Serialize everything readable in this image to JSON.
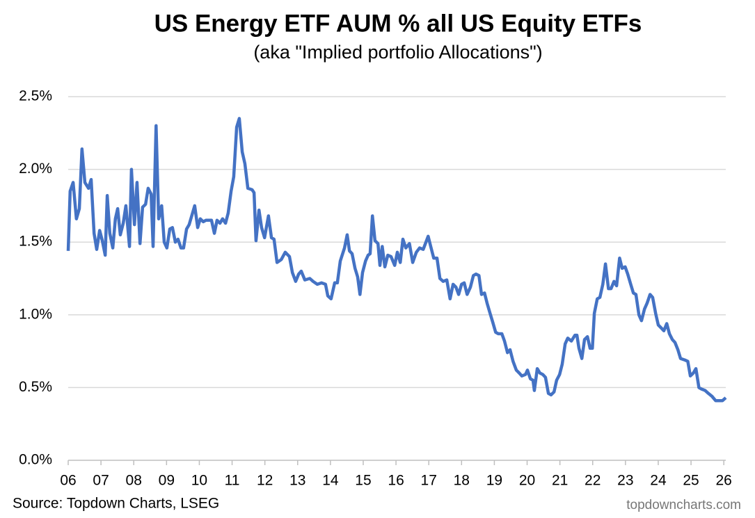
{
  "chart_data": {
    "type": "line",
    "title": "US Energy ETF AUM % all US Equity ETFs",
    "subtitle": "(aka \"Implied portfolio Allocations\")",
    "source": "Source: Topdown Charts, LSEG",
    "watermark": "topdowncharts.com",
    "color": "#4472c4",
    "grid": true,
    "xlim": [
      2006,
      2026.06
    ],
    "xticks": [
      {
        "value": 2006,
        "label": "06"
      },
      {
        "value": 2007,
        "label": "07"
      },
      {
        "value": 2008,
        "label": "08"
      },
      {
        "value": 2009,
        "label": "09"
      },
      {
        "value": 2010,
        "label": "10"
      },
      {
        "value": 2011,
        "label": "11"
      },
      {
        "value": 2012,
        "label": "12"
      },
      {
        "value": 2013,
        "label": "13"
      },
      {
        "value": 2014,
        "label": "14"
      },
      {
        "value": 2015,
        "label": "15"
      },
      {
        "value": 2016,
        "label": "16"
      },
      {
        "value": 2017,
        "label": "17"
      },
      {
        "value": 2018,
        "label": "18"
      },
      {
        "value": 2019,
        "label": "19"
      },
      {
        "value": 2020,
        "label": "20"
      },
      {
        "value": 2021,
        "label": "21"
      },
      {
        "value": 2022,
        "label": "22"
      },
      {
        "value": 2023,
        "label": "23"
      },
      {
        "value": 2024,
        "label": "24"
      },
      {
        "value": 2025,
        "label": "25"
      },
      {
        "value": 2026,
        "label": "26"
      }
    ],
    "ylim": [
      0,
      2.5
    ],
    "yticks": [
      {
        "value": 0,
        "label": "0.0%"
      },
      {
        "value": 0.5,
        "label": "0.5%"
      },
      {
        "value": 1,
        "label": "1.0%"
      },
      {
        "value": 1.5,
        "label": "1.5%"
      },
      {
        "value": 2,
        "label": "2.0%"
      },
      {
        "value": 2.5,
        "label": "2.5%"
      }
    ],
    "x": [
      2006.0,
      2006.06,
      2006.15,
      2006.25,
      2006.34,
      2006.42,
      2006.51,
      2006.62,
      2006.7,
      2006.79,
      2006.87,
      2006.96,
      2007.04,
      2007.13,
      2007.19,
      2007.27,
      2007.36,
      2007.44,
      2007.51,
      2007.59,
      2007.68,
      2007.76,
      2007.87,
      2007.93,
      2008.02,
      2008.1,
      2008.19,
      2008.27,
      2008.36,
      2008.44,
      2008.53,
      2008.59,
      2008.68,
      2008.76,
      2008.85,
      2008.93,
      2009.01,
      2009.1,
      2009.18,
      2009.27,
      2009.35,
      2009.44,
      2009.52,
      2009.61,
      2009.69,
      2009.86,
      2009.95,
      2010.03,
      2010.12,
      2010.2,
      2010.37,
      2010.46,
      2010.54,
      2010.63,
      2010.71,
      2010.8,
      2010.88,
      2010.97,
      2011.05,
      2011.14,
      2011.22,
      2011.31,
      2011.39,
      2011.48,
      2011.61,
      2011.67,
      2011.73,
      2011.82,
      2011.9,
      2011.99,
      2012.11,
      2012.2,
      2012.28,
      2012.37,
      2012.5,
      2012.62,
      2012.75,
      2012.84,
      2012.94,
      2013.03,
      2013.11,
      2013.22,
      2013.37,
      2013.47,
      2013.6,
      2013.73,
      2013.85,
      2013.92,
      2014.02,
      2014.13,
      2014.21,
      2014.3,
      2014.43,
      2014.51,
      2014.58,
      2014.66,
      2014.75,
      2014.83,
      2014.9,
      2014.98,
      2015.07,
      2015.15,
      2015.21,
      2015.28,
      2015.36,
      2015.45,
      2015.51,
      2015.58,
      2015.66,
      2015.75,
      2015.85,
      2015.96,
      2016.04,
      2016.13,
      2016.21,
      2016.3,
      2016.41,
      2016.51,
      2016.62,
      2016.72,
      2016.83,
      2016.98,
      2017.06,
      2017.15,
      2017.25,
      2017.34,
      2017.44,
      2017.55,
      2017.65,
      2017.74,
      2017.83,
      2017.91,
      2018.0,
      2018.08,
      2018.17,
      2018.27,
      2018.36,
      2018.44,
      2018.53,
      2018.61,
      2018.7,
      2018.78,
      2018.87,
      2018.95,
      2019.04,
      2019.12,
      2019.23,
      2019.31,
      2019.4,
      2019.48,
      2019.57,
      2019.67,
      2019.76,
      2019.84,
      2019.95,
      2020.01,
      2020.1,
      2020.18,
      2020.22,
      2020.31,
      2020.39,
      2020.48,
      2020.56,
      2020.65,
      2020.73,
      2020.82,
      2020.9,
      2020.99,
      2021.07,
      2021.16,
      2021.24,
      2021.35,
      2021.46,
      2021.52,
      2021.58,
      2021.67,
      2021.75,
      2021.84,
      2021.92,
      2021.99,
      2022.05,
      2022.14,
      2022.22,
      2022.31,
      2022.39,
      2022.48,
      2022.56,
      2022.65,
      2022.73,
      2022.82,
      2022.9,
      2022.99,
      2023.07,
      2023.16,
      2023.24,
      2023.32,
      2023.41,
      2023.49,
      2023.58,
      2023.66,
      2023.75,
      2023.83,
      2023.92,
      2024.0,
      2024.09,
      2024.17,
      2024.26,
      2024.34,
      2024.43,
      2024.51,
      2024.6,
      2024.68,
      2024.81,
      2024.9,
      2024.98,
      2025.07,
      2025.15,
      2025.24,
      2025.32,
      2025.43,
      2025.53,
      2025.64,
      2025.75,
      2025.85,
      2025.96,
      2026.06
    ],
    "values": [
      1.44,
      1.85,
      1.91,
      1.66,
      1.73,
      2.14,
      1.91,
      1.87,
      1.93,
      1.56,
      1.45,
      1.58,
      1.51,
      1.41,
      1.82,
      1.56,
      1.46,
      1.66,
      1.73,
      1.55,
      1.63,
      1.75,
      1.47,
      2.0,
      1.62,
      1.91,
      1.49,
      1.74,
      1.76,
      1.87,
      1.83,
      1.47,
      2.3,
      1.66,
      1.75,
      1.5,
      1.46,
      1.59,
      1.6,
      1.5,
      1.52,
      1.46,
      1.46,
      1.59,
      1.62,
      1.75,
      1.6,
      1.66,
      1.64,
      1.65,
      1.65,
      1.56,
      1.65,
      1.63,
      1.66,
      1.63,
      1.7,
      1.85,
      1.95,
      2.29,
      2.35,
      2.12,
      2.04,
      1.87,
      1.86,
      1.84,
      1.51,
      1.72,
      1.6,
      1.53,
      1.68,
      1.53,
      1.52,
      1.36,
      1.38,
      1.43,
      1.4,
      1.29,
      1.23,
      1.28,
      1.3,
      1.24,
      1.25,
      1.23,
      1.21,
      1.22,
      1.21,
      1.13,
      1.11,
      1.22,
      1.22,
      1.37,
      1.46,
      1.55,
      1.44,
      1.42,
      1.32,
      1.26,
      1.14,
      1.29,
      1.37,
      1.41,
      1.42,
      1.68,
      1.51,
      1.49,
      1.34,
      1.47,
      1.33,
      1.41,
      1.4,
      1.34,
      1.43,
      1.36,
      1.52,
      1.46,
      1.49,
      1.36,
      1.43,
      1.46,
      1.45,
      1.54,
      1.47,
      1.39,
      1.39,
      1.25,
      1.23,
      1.24,
      1.11,
      1.21,
      1.19,
      1.14,
      1.21,
      1.22,
      1.14,
      1.19,
      1.27,
      1.28,
      1.27,
      1.14,
      1.15,
      1.08,
      1.01,
      0.95,
      0.88,
      0.87,
      0.87,
      0.82,
      0.74,
      0.76,
      0.68,
      0.62,
      0.6,
      0.58,
      0.59,
      0.62,
      0.56,
      0.55,
      0.48,
      0.63,
      0.6,
      0.59,
      0.57,
      0.46,
      0.45,
      0.47,
      0.55,
      0.59,
      0.66,
      0.8,
      0.84,
      0.82,
      0.86,
      0.86,
      0.77,
      0.7,
      0.83,
      0.85,
      0.77,
      0.77,
      1.01,
      1.11,
      1.12,
      1.21,
      1.35,
      1.18,
      1.18,
      1.23,
      1.2,
      1.39,
      1.32,
      1.33,
      1.28,
      1.21,
      1.15,
      1.14,
      1.0,
      0.96,
      1.04,
      1.08,
      1.14,
      1.12,
      1.01,
      0.93,
      0.91,
      0.89,
      0.94,
      0.87,
      0.83,
      0.81,
      0.76,
      0.7,
      0.69,
      0.68,
      0.58,
      0.6,
      0.63,
      0.5,
      0.49,
      0.48,
      0.46,
      0.44,
      0.41,
      0.41,
      0.41,
      0.43
    ]
  }
}
